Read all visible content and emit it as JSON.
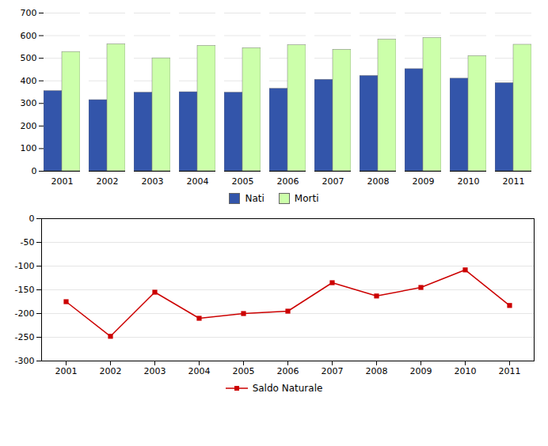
{
  "chart_data": [
    {
      "type": "bar",
      "categories": [
        "2001",
        "2002",
        "2003",
        "2004",
        "2005",
        "2006",
        "2007",
        "2008",
        "2009",
        "2010",
        "2011"
      ],
      "series": [
        {
          "name": "Nati",
          "color": "#3355AA",
          "values": [
            355,
            315,
            348,
            350,
            348,
            365,
            405,
            422,
            452,
            410,
            390
          ]
        },
        {
          "name": "Morti",
          "color": "#CCFFAA",
          "values": [
            528,
            562,
            500,
            555,
            545,
            558,
            538,
            583,
            590,
            510,
            560
          ]
        }
      ],
      "ylim": [
        0,
        700
      ],
      "yticks": [
        0,
        100,
        200,
        300,
        400,
        500,
        600,
        700
      ],
      "grid": true,
      "legend": "bottom"
    },
    {
      "type": "line",
      "categories": [
        "2001",
        "2002",
        "2003",
        "2004",
        "2005",
        "2006",
        "2007",
        "2008",
        "2009",
        "2010",
        "2011"
      ],
      "series": [
        {
          "name": "Saldo Naturale",
          "color": "#CC0000",
          "marker": "square",
          "line_style": "solid",
          "values": [
            -175,
            -248,
            -155,
            -210,
            -200,
            -195,
            -135,
            -163,
            -145,
            -108,
            -183
          ]
        }
      ],
      "ylim": [
        -300,
        0
      ],
      "yticks": [
        -300,
        -250,
        -200,
        -150,
        -100,
        -50,
        0
      ],
      "grid": true,
      "legend": "bottom"
    }
  ]
}
